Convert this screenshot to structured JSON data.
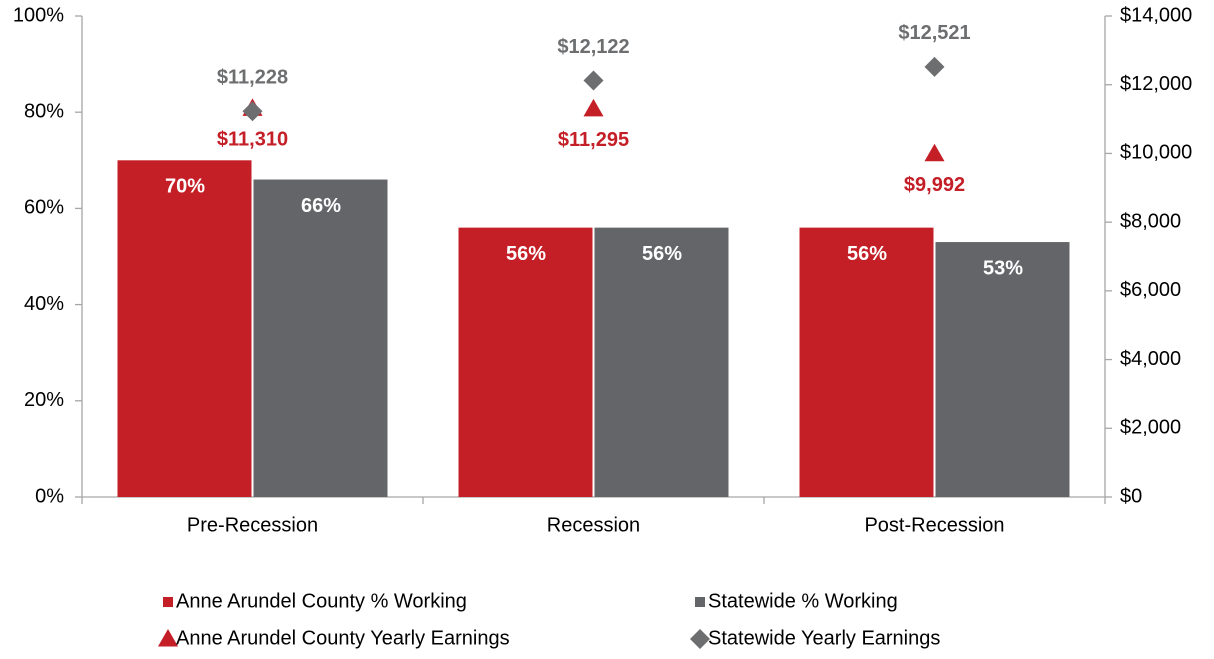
{
  "chart_data": {
    "type": "bar",
    "categories": [
      "Pre-Recession",
      "Recession",
      "Post-Recession"
    ],
    "series": [
      {
        "name": "Anne Arundel County % Working",
        "type": "bar",
        "color": "#c41e26",
        "values": [
          70,
          56,
          56
        ],
        "value_labels": [
          "70%",
          "56%",
          "56%"
        ]
      },
      {
        "name": "Statewide % Working",
        "type": "bar",
        "color": "#646569",
        "values": [
          66,
          56,
          53
        ],
        "value_labels": [
          "66%",
          "56%",
          "53%"
        ]
      },
      {
        "name": "Anne Arundel County Yearly Earnings",
        "type": "scatter",
        "marker": "triangle",
        "axis": "y2",
        "color": "#c41e26",
        "values": [
          11310,
          11295,
          9992
        ],
        "value_labels": [
          "$11,310",
          "$11,295",
          "$9,992"
        ]
      },
      {
        "name": "Statewide Yearly Earnings",
        "type": "scatter",
        "marker": "diamond",
        "axis": "y2",
        "color": "#6d6e70",
        "values": [
          11228,
          12122,
          12521
        ],
        "value_labels": [
          "$11,228",
          "$12,122",
          "$12,521"
        ]
      }
    ],
    "ylim": [
      0,
      100
    ],
    "yticks": [
      {
        "value": 0,
        "label": "0%"
      },
      {
        "value": 20,
        "label": "20%"
      },
      {
        "value": 40,
        "label": "40%"
      },
      {
        "value": 60,
        "label": "60%"
      },
      {
        "value": 80,
        "label": "80%"
      },
      {
        "value": 100,
        "label": "100%"
      }
    ],
    "y2lim": [
      0,
      14000
    ],
    "y2ticks": [
      {
        "value": 0,
        "label": "$0"
      },
      {
        "value": 2000,
        "label": "$2,000"
      },
      {
        "value": 4000,
        "label": "$4,000"
      },
      {
        "value": 6000,
        "label": "$6,000"
      },
      {
        "value": 8000,
        "label": "$8,000"
      },
      {
        "value": 10000,
        "label": "$10,000"
      },
      {
        "value": 12000,
        "label": "$12,000"
      },
      {
        "value": 14000,
        "label": "$14,000"
      }
    ],
    "legend": "bottom"
  }
}
